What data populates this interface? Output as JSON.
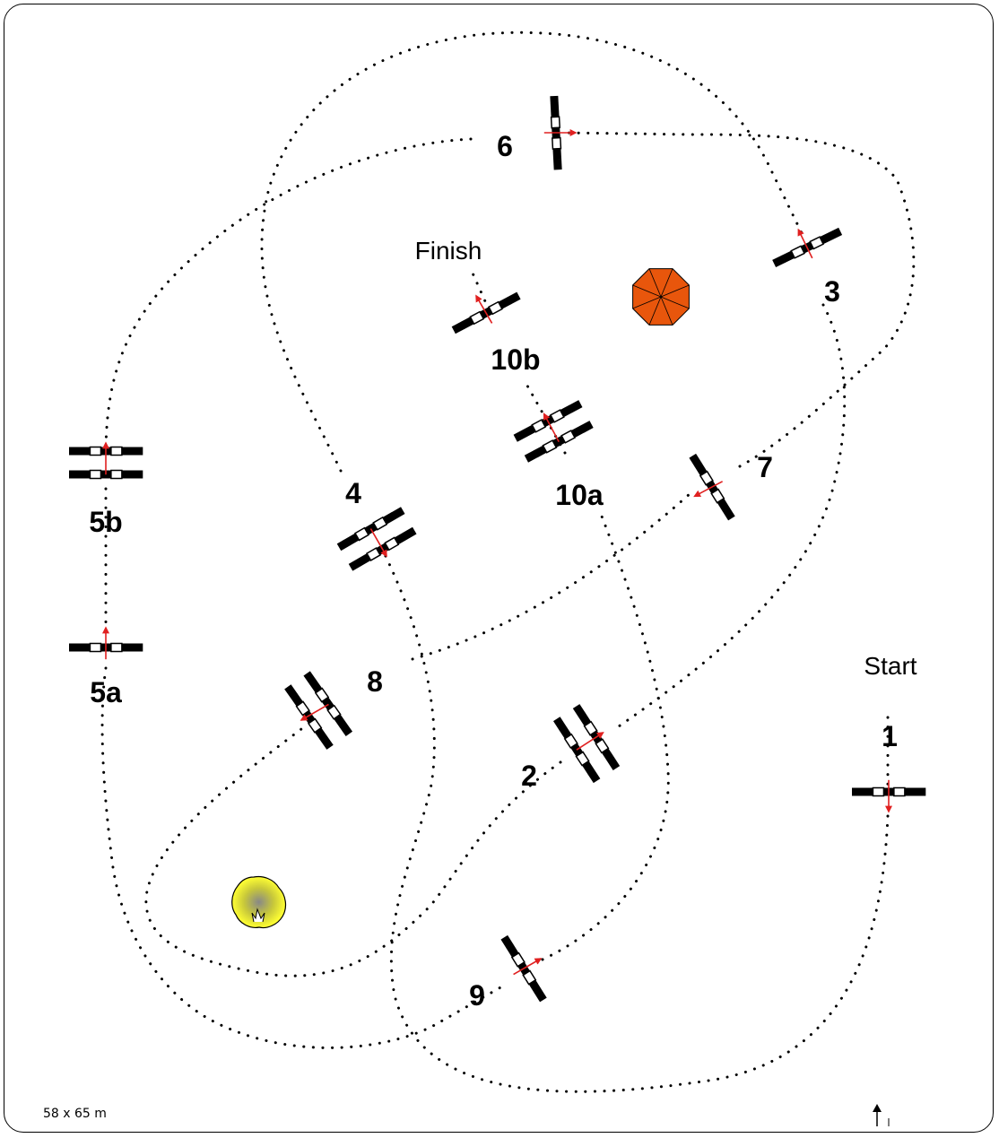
{
  "course": {
    "dimensions": "58 x 65 m",
    "start_label": "Start",
    "finish_label": "Finish",
    "colors": {
      "rail_dark": "#000000",
      "rail_light": "#ffffff",
      "direction_arrow": "#e02020",
      "tree": "#ffff33",
      "umbrella": "#e8560c"
    },
    "obstacles": [
      {
        "id": "1",
        "type": "vertical"
      },
      {
        "id": "2",
        "type": "oxer"
      },
      {
        "id": "3",
        "type": "vertical"
      },
      {
        "id": "4",
        "type": "oxer"
      },
      {
        "id": "5a",
        "type": "vertical"
      },
      {
        "id": "5b",
        "type": "oxer"
      },
      {
        "id": "6",
        "type": "vertical"
      },
      {
        "id": "7",
        "type": "vertical"
      },
      {
        "id": "8",
        "type": "oxer"
      },
      {
        "id": "9",
        "type": "vertical"
      },
      {
        "id": "10a",
        "type": "oxer"
      },
      {
        "id": "10b",
        "type": "vertical"
      }
    ],
    "decorations": [
      {
        "name": "tree-icon"
      },
      {
        "name": "umbrella-icon"
      },
      {
        "name": "north-arrow-icon"
      }
    ]
  }
}
